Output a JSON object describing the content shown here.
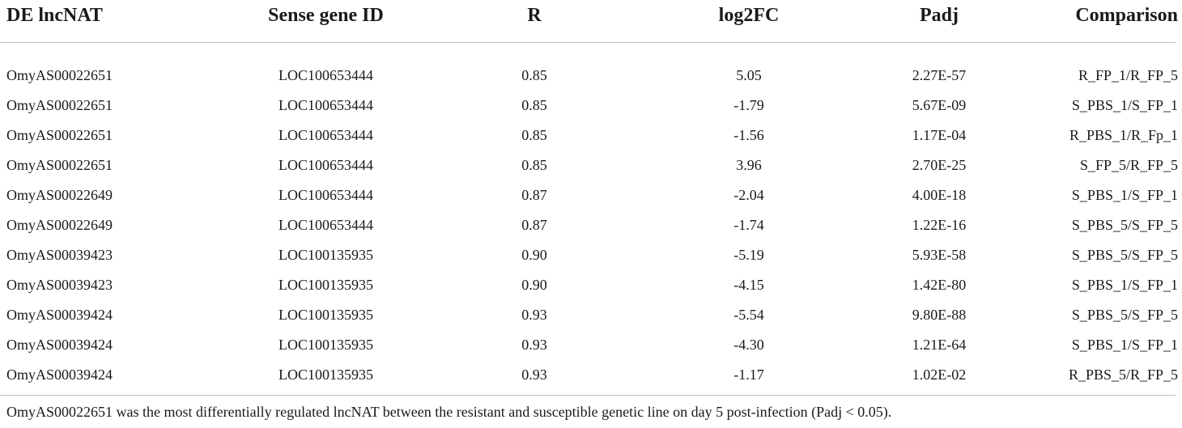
{
  "table": {
    "headers": [
      "DE lncNAT",
      "Sense gene ID",
      "R",
      "log2FC",
      "Padj",
      "Comparison"
    ],
    "rows": [
      [
        "OmyAS00022651",
        "LOC100653444",
        "0.85",
        "5.05",
        "2.27E-57",
        "R_FP_1/R_FP_5"
      ],
      [
        "OmyAS00022651",
        "LOC100653444",
        "0.85",
        "-1.79",
        "5.67E-09",
        "S_PBS_1/S_FP_1"
      ],
      [
        "OmyAS00022651",
        "LOC100653444",
        "0.85",
        "-1.56",
        "1.17E-04",
        "R_PBS_1/R_Fp_1"
      ],
      [
        "OmyAS00022651",
        "LOC100653444",
        "0.85",
        "3.96",
        "2.70E-25",
        "S_FP_5/R_FP_5"
      ],
      [
        "OmyAS00022649",
        "LOC100653444",
        "0.87",
        "-2.04",
        "4.00E-18",
        "S_PBS_1/S_FP_1"
      ],
      [
        "OmyAS00022649",
        "LOC100653444",
        "0.87",
        "-1.74",
        "1.22E-16",
        "S_PBS_5/S_FP_5"
      ],
      [
        "OmyAS00039423",
        "LOC100135935",
        "0.90",
        "-5.19",
        "5.93E-58",
        "S_PBS_5/S_FP_5"
      ],
      [
        "OmyAS00039423",
        "LOC100135935",
        "0.90",
        "-4.15",
        "1.42E-80",
        "S_PBS_1/S_FP_1"
      ],
      [
        "OmyAS00039424",
        "LOC100135935",
        "0.93",
        "-5.54",
        "9.80E-88",
        "S_PBS_5/S_FP_5"
      ],
      [
        "OmyAS00039424",
        "LOC100135935",
        "0.93",
        "-4.30",
        "1.21E-64",
        "S_PBS_1/S_FP_1"
      ],
      [
        "OmyAS00039424",
        "LOC100135935",
        "0.93",
        "-1.17",
        "1.02E-02",
        "R_PBS_5/R_FP_5"
      ]
    ]
  },
  "footnote": "OmyAS00022651 was the most differentially regulated lncNAT between the resistant and susceptible genetic line on day 5 post-infection (Padj < 0.05)."
}
